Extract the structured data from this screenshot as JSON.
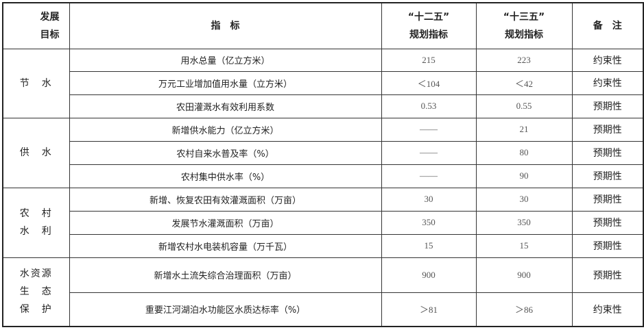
{
  "header": {
    "goal": [
      "发展",
      "目标"
    ],
    "indicator": "指　标",
    "plan12": [
      "“十二五”",
      "规划指标"
    ],
    "plan13": [
      "“十三五”",
      "规划指标"
    ],
    "note": "备　注"
  },
  "groups": [
    {
      "label": [
        "节　水"
      ],
      "rows": [
        {
          "indicator": "用水总量（亿立方米）",
          "plan12": "215",
          "plan13": "223",
          "note": "约束性"
        },
        {
          "indicator": "万元工业增加值用水量（立方米）",
          "plan12": "＜104",
          "plan13": "＜42",
          "note": "约束性"
        },
        {
          "indicator": "农田灌溉水有效利用系数",
          "plan12": "0.53",
          "plan13": "0.55",
          "note": "预期性"
        }
      ]
    },
    {
      "label": [
        "供　水"
      ],
      "rows": [
        {
          "indicator": "新增供水能力（亿立方米）",
          "plan12": "——",
          "plan13": "21",
          "note": "预期性"
        },
        {
          "indicator": "农村自来水普及率（%）",
          "plan12": "——",
          "plan13": "80",
          "note": "预期性"
        },
        {
          "indicator": "农村集中供水率（%）",
          "plan12": "——",
          "plan13": "90",
          "note": "预期性"
        }
      ]
    },
    {
      "label": [
        "农　村",
        "水　利"
      ],
      "rows": [
        {
          "indicator": "新增、恢复农田有效灌溉面积（万亩）",
          "plan12": "30",
          "plan13": "30",
          "note": "预期性"
        },
        {
          "indicator": "发展节水灌溉面积（万亩）",
          "plan12": "350",
          "plan13": "350",
          "note": "预期性"
        },
        {
          "indicator": "新增农村水电装机容量（万千瓦）",
          "plan12": "15",
          "plan13": "15",
          "note": "预期性"
        }
      ]
    },
    {
      "label": [
        "水资源",
        "生　态",
        "保　护"
      ],
      "rows": [
        {
          "indicator": "新增水土流失综合治理面积（万亩）",
          "plan12": "900",
          "plan13": "900",
          "note": "预期性"
        },
        {
          "indicator": "重要江河湖泊水功能区水质达标率（%）",
          "plan12": "＞81",
          "plan13": "＞86",
          "note": "约束性"
        }
      ]
    }
  ]
}
